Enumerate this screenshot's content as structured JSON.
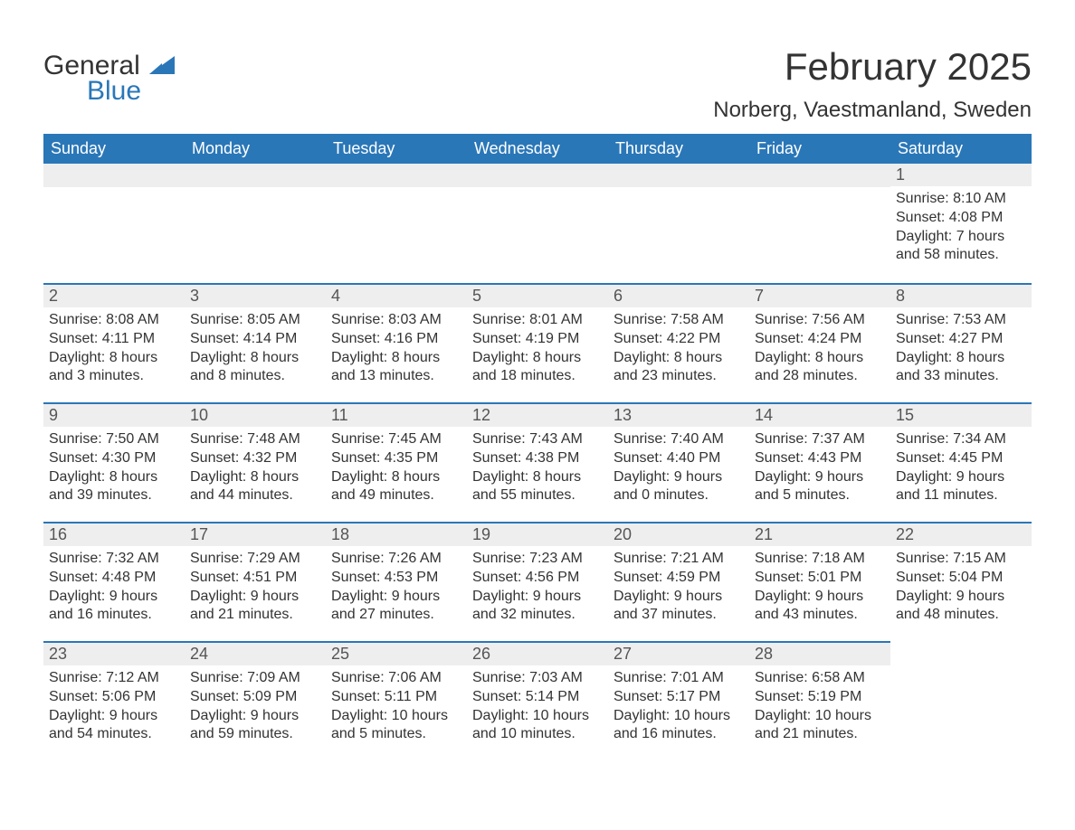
{
  "logo": {
    "text_general": "General",
    "text_blue": "Blue",
    "flag_color": "#2a77b8"
  },
  "title": "February 2025",
  "location": "Norberg, Vaestmanland, Sweden",
  "colors": {
    "header_bg": "#2a77b8",
    "header_text": "#ffffff",
    "daynum_bg": "#eeeeee",
    "daynum_border": "#2a77b8",
    "body_bg": "#ffffff",
    "text": "#333333"
  },
  "fonts": {
    "title_size_pt": 32,
    "location_size_pt": 18,
    "header_size_pt": 14,
    "daynum_size_pt": 14,
    "body_size_pt": 12
  },
  "weekdays": [
    "Sunday",
    "Monday",
    "Tuesday",
    "Wednesday",
    "Thursday",
    "Friday",
    "Saturday"
  ],
  "weeks": [
    [
      null,
      null,
      null,
      null,
      null,
      null,
      {
        "n": "1",
        "sr": "Sunrise: 8:10 AM",
        "ss": "Sunset: 4:08 PM",
        "dl1": "Daylight: 7 hours",
        "dl2": "and 58 minutes."
      }
    ],
    [
      {
        "n": "2",
        "sr": "Sunrise: 8:08 AM",
        "ss": "Sunset: 4:11 PM",
        "dl1": "Daylight: 8 hours",
        "dl2": "and 3 minutes."
      },
      {
        "n": "3",
        "sr": "Sunrise: 8:05 AM",
        "ss": "Sunset: 4:14 PM",
        "dl1": "Daylight: 8 hours",
        "dl2": "and 8 minutes."
      },
      {
        "n": "4",
        "sr": "Sunrise: 8:03 AM",
        "ss": "Sunset: 4:16 PM",
        "dl1": "Daylight: 8 hours",
        "dl2": "and 13 minutes."
      },
      {
        "n": "5",
        "sr": "Sunrise: 8:01 AM",
        "ss": "Sunset: 4:19 PM",
        "dl1": "Daylight: 8 hours",
        "dl2": "and 18 minutes."
      },
      {
        "n": "6",
        "sr": "Sunrise: 7:58 AM",
        "ss": "Sunset: 4:22 PM",
        "dl1": "Daylight: 8 hours",
        "dl2": "and 23 minutes."
      },
      {
        "n": "7",
        "sr": "Sunrise: 7:56 AM",
        "ss": "Sunset: 4:24 PM",
        "dl1": "Daylight: 8 hours",
        "dl2": "and 28 minutes."
      },
      {
        "n": "8",
        "sr": "Sunrise: 7:53 AM",
        "ss": "Sunset: 4:27 PM",
        "dl1": "Daylight: 8 hours",
        "dl2": "and 33 minutes."
      }
    ],
    [
      {
        "n": "9",
        "sr": "Sunrise: 7:50 AM",
        "ss": "Sunset: 4:30 PM",
        "dl1": "Daylight: 8 hours",
        "dl2": "and 39 minutes."
      },
      {
        "n": "10",
        "sr": "Sunrise: 7:48 AM",
        "ss": "Sunset: 4:32 PM",
        "dl1": "Daylight: 8 hours",
        "dl2": "and 44 minutes."
      },
      {
        "n": "11",
        "sr": "Sunrise: 7:45 AM",
        "ss": "Sunset: 4:35 PM",
        "dl1": "Daylight: 8 hours",
        "dl2": "and 49 minutes."
      },
      {
        "n": "12",
        "sr": "Sunrise: 7:43 AM",
        "ss": "Sunset: 4:38 PM",
        "dl1": "Daylight: 8 hours",
        "dl2": "and 55 minutes."
      },
      {
        "n": "13",
        "sr": "Sunrise: 7:40 AM",
        "ss": "Sunset: 4:40 PM",
        "dl1": "Daylight: 9 hours",
        "dl2": "and 0 minutes."
      },
      {
        "n": "14",
        "sr": "Sunrise: 7:37 AM",
        "ss": "Sunset: 4:43 PM",
        "dl1": "Daylight: 9 hours",
        "dl2": "and 5 minutes."
      },
      {
        "n": "15",
        "sr": "Sunrise: 7:34 AM",
        "ss": "Sunset: 4:45 PM",
        "dl1": "Daylight: 9 hours",
        "dl2": "and 11 minutes."
      }
    ],
    [
      {
        "n": "16",
        "sr": "Sunrise: 7:32 AM",
        "ss": "Sunset: 4:48 PM",
        "dl1": "Daylight: 9 hours",
        "dl2": "and 16 minutes."
      },
      {
        "n": "17",
        "sr": "Sunrise: 7:29 AM",
        "ss": "Sunset: 4:51 PM",
        "dl1": "Daylight: 9 hours",
        "dl2": "and 21 minutes."
      },
      {
        "n": "18",
        "sr": "Sunrise: 7:26 AM",
        "ss": "Sunset: 4:53 PM",
        "dl1": "Daylight: 9 hours",
        "dl2": "and 27 minutes."
      },
      {
        "n": "19",
        "sr": "Sunrise: 7:23 AM",
        "ss": "Sunset: 4:56 PM",
        "dl1": "Daylight: 9 hours",
        "dl2": "and 32 minutes."
      },
      {
        "n": "20",
        "sr": "Sunrise: 7:21 AM",
        "ss": "Sunset: 4:59 PM",
        "dl1": "Daylight: 9 hours",
        "dl2": "and 37 minutes."
      },
      {
        "n": "21",
        "sr": "Sunrise: 7:18 AM",
        "ss": "Sunset: 5:01 PM",
        "dl1": "Daylight: 9 hours",
        "dl2": "and 43 minutes."
      },
      {
        "n": "22",
        "sr": "Sunrise: 7:15 AM",
        "ss": "Sunset: 5:04 PM",
        "dl1": "Daylight: 9 hours",
        "dl2": "and 48 minutes."
      }
    ],
    [
      {
        "n": "23",
        "sr": "Sunrise: 7:12 AM",
        "ss": "Sunset: 5:06 PM",
        "dl1": "Daylight: 9 hours",
        "dl2": "and 54 minutes."
      },
      {
        "n": "24",
        "sr": "Sunrise: 7:09 AM",
        "ss": "Sunset: 5:09 PM",
        "dl1": "Daylight: 9 hours",
        "dl2": "and 59 minutes."
      },
      {
        "n": "25",
        "sr": "Sunrise: 7:06 AM",
        "ss": "Sunset: 5:11 PM",
        "dl1": "Daylight: 10 hours",
        "dl2": "and 5 minutes."
      },
      {
        "n": "26",
        "sr": "Sunrise: 7:03 AM",
        "ss": "Sunset: 5:14 PM",
        "dl1": "Daylight: 10 hours",
        "dl2": "and 10 minutes."
      },
      {
        "n": "27",
        "sr": "Sunrise: 7:01 AM",
        "ss": "Sunset: 5:17 PM",
        "dl1": "Daylight: 10 hours",
        "dl2": "and 16 minutes."
      },
      {
        "n": "28",
        "sr": "Sunrise: 6:58 AM",
        "ss": "Sunset: 5:19 PM",
        "dl1": "Daylight: 10 hours",
        "dl2": "and 21 minutes."
      },
      null
    ]
  ]
}
